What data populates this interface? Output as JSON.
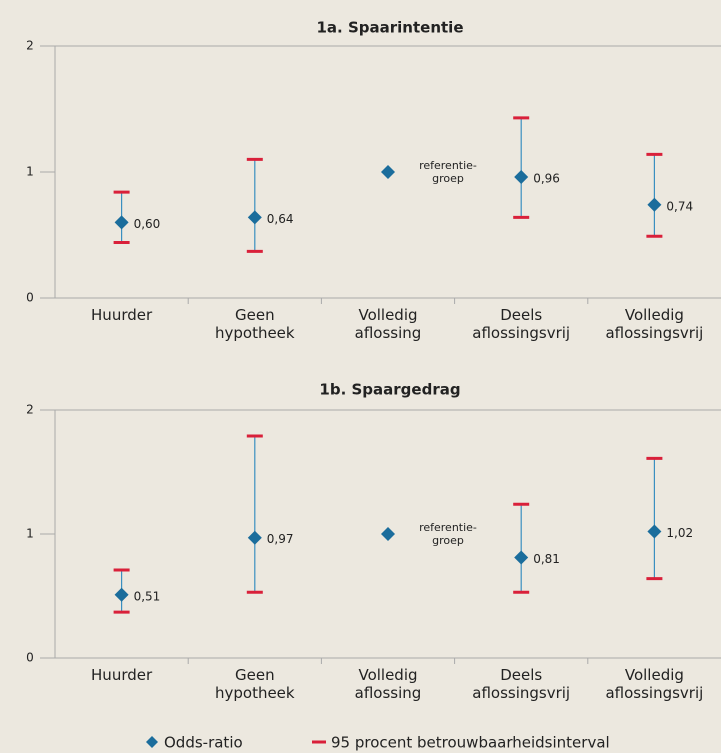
{
  "chart_data": [
    {
      "type": "errorbar",
      "title": "1a. Spaarintentie",
      "categories": [
        "Huurder",
        "Geen hypotheek",
        "Volledig aflossing",
        "Deels aflossingsvrij",
        "Volledig aflossingsvrij"
      ],
      "series": [
        {
          "color": "#1b6d9c",
          "values": [
            0.6,
            0.64,
            1,
            0.96,
            0.74
          ],
          "value_labels": [
            "0,60",
            "0,64",
            null,
            "0,96",
            "0,74"
          ]
        }
      ],
      "ci_lower": [
        0.44,
        0.37,
        null,
        0.64,
        0.49
      ],
      "ci_upper": [
        0.84,
        1.1,
        null,
        1.43,
        1.14
      ],
      "ci_color": "#d9203a",
      "whisker_color": "#3a8fc0",
      "annotation": {
        "index": 2,
        "lines": [
          "referentie-",
          "groep"
        ]
      },
      "ylim": [
        0,
        2
      ],
      "yticks": [
        0,
        1,
        2
      ]
    },
    {
      "type": "errorbar",
      "title": "1b. Spaargedrag",
      "categories": [
        "Huurder",
        "Geen hypotheek",
        "Volledig aflossing",
        "Deels aflossingsvrij",
        "Volledig aflossingsvrij"
      ],
      "series": [
        {
          "color": "#1b6d9c",
          "values": [
            0.51,
            0.97,
            1,
            0.81,
            1.02
          ],
          "value_labels": [
            "0,51",
            "0,97",
            null,
            "0,81",
            "1,02"
          ]
        }
      ],
      "ci_lower": [
        0.37,
        0.53,
        null,
        0.53,
        0.64
      ],
      "ci_upper": [
        0.71,
        1.79,
        null,
        1.24,
        1.61
      ],
      "ci_color": "#d9203a",
      "whisker_color": "#3a8fc0",
      "annotation": {
        "index": 2,
        "lines": [
          "referentie-",
          "groep"
        ]
      },
      "ylim": [
        0,
        2
      ],
      "yticks": [
        0,
        1,
        2
      ]
    }
  ],
  "legend": {
    "marker": "Odds-ratio",
    "interval": "95 procent betrouwbaarheidsinterval"
  }
}
